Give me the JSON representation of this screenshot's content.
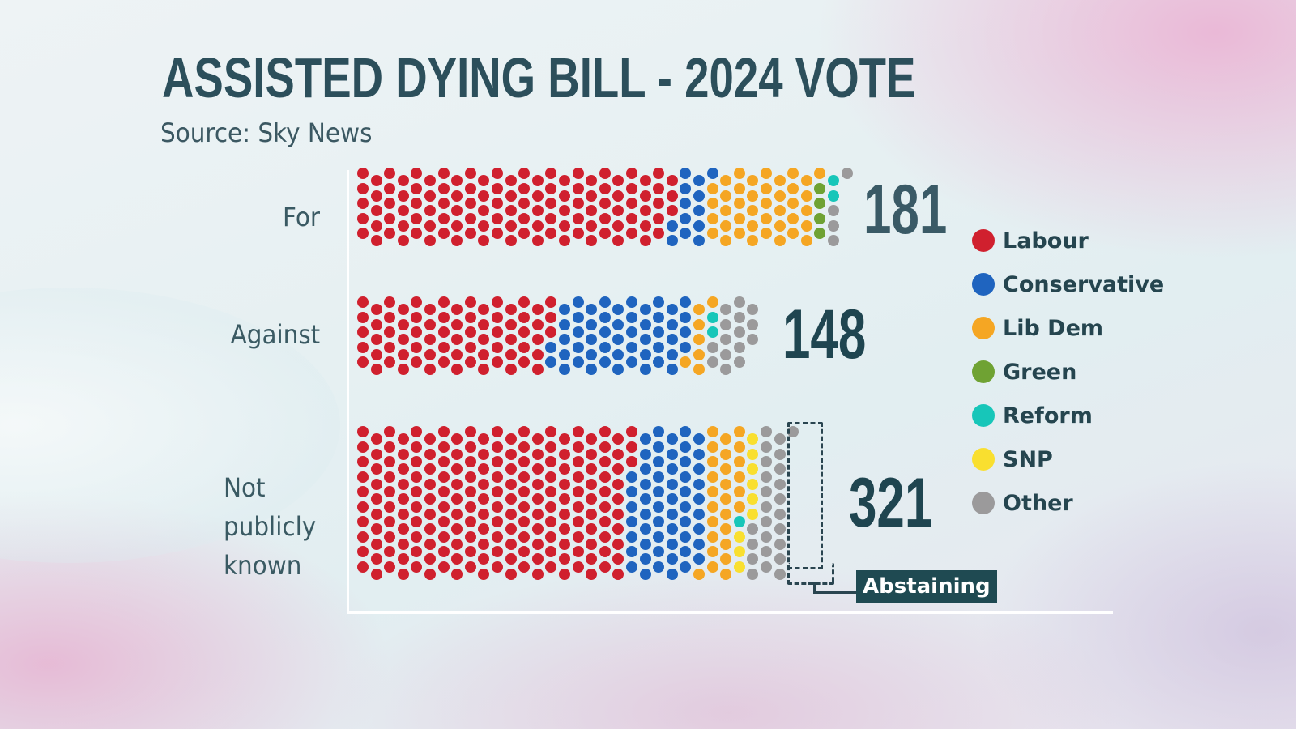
{
  "header": {
    "title": "ASSISTED DYING BILL - 2024 VOTE",
    "source": "Source: Sky News"
  },
  "rows": [
    {
      "label": "For",
      "total": "181"
    },
    {
      "label": "Against",
      "total": "148"
    },
    {
      "label_lines": [
        "Not",
        "publicly",
        "known"
      ],
      "total": "321"
    }
  ],
  "legend": [
    {
      "label": "Labour",
      "color": "#d0202e"
    },
    {
      "label": "Conservative",
      "color": "#1f64bf"
    },
    {
      "label": "Lib Dem",
      "color": "#f5a623"
    },
    {
      "label": "Green",
      "color": "#6fa233"
    },
    {
      "label": "Reform",
      "color": "#17c6b9"
    },
    {
      "label": "SNP",
      "color": "#f9df2f"
    },
    {
      "label": "Other",
      "color": "#9b9a9b"
    }
  ],
  "annotation": {
    "abstaining_label": "Abstaining"
  },
  "chart_data": {
    "type": "bar",
    "subtype": "stacked dot (waffle) bar",
    "title": "ASSISTED DYING BILL - 2024 VOTE",
    "subtitle": "Source: Sky News",
    "categories": [
      "For",
      "Against",
      "Not publicly known"
    ],
    "totals": [
      181,
      148,
      321
    ],
    "series": [
      {
        "name": "Labour",
        "color": "#d0202e",
        "values": [
          118,
          73,
          203
        ]
      },
      {
        "name": "Conservative",
        "color": "#1f64bf",
        "values": [
          13,
          51,
          56
        ]
      },
      {
        "name": "Lib Dem",
        "color": "#f5a623",
        "values": [
          40,
          7,
          27
        ]
      },
      {
        "name": "Green",
        "color": "#6fa233",
        "values": [
          4,
          0,
          0
        ]
      },
      {
        "name": "Reform",
        "color": "#17c6b9",
        "values": [
          2,
          2,
          1
        ]
      },
      {
        "name": "SNP",
        "color": "#f9df2f",
        "values": [
          0,
          0,
          9
        ]
      },
      {
        "name": "Other",
        "color": "#9b9a9b",
        "values": [
          4,
          15,
          25
        ]
      }
    ],
    "annotations": [
      {
        "text": "Abstaining",
        "target": "Not publicly known: SNP and adjacent Other dots (dashed box)"
      }
    ],
    "legend_position": "right",
    "grid": false,
    "xlabel": "",
    "ylabel": ""
  }
}
